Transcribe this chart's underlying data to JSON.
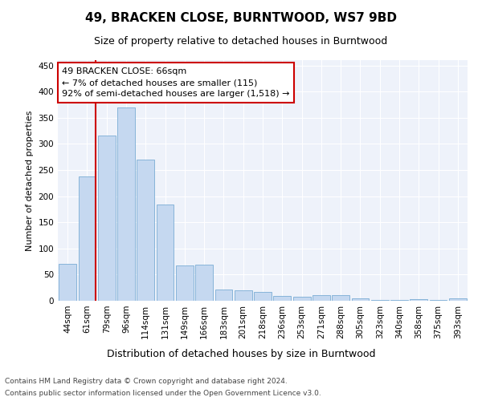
{
  "title": "49, BRACKEN CLOSE, BURNTWOOD, WS7 9BD",
  "subtitle": "Size of property relative to detached houses in Burntwood",
  "xlabel": "Distribution of detached houses by size in Burntwood",
  "ylabel": "Number of detached properties",
  "categories": [
    "44sqm",
    "61sqm",
    "79sqm",
    "96sqm",
    "114sqm",
    "131sqm",
    "149sqm",
    "166sqm",
    "183sqm",
    "201sqm",
    "218sqm",
    "236sqm",
    "253sqm",
    "271sqm",
    "288sqm",
    "305sqm",
    "323sqm",
    "340sqm",
    "358sqm",
    "375sqm",
    "393sqm"
  ],
  "values": [
    70,
    237,
    316,
    369,
    270,
    184,
    67,
    69,
    21,
    20,
    17,
    9,
    7,
    10,
    10,
    4,
    2,
    2,
    3,
    1,
    4
  ],
  "bar_color": "#c5d8f0",
  "bar_edge_color": "#7aadd4",
  "background_color": "#eef2fa",
  "grid_color": "#ffffff",
  "vline_color": "#cc0000",
  "annotation_line1": "49 BRACKEN CLOSE: 66sqm",
  "annotation_line2": "← 7% of detached houses are smaller (115)",
  "annotation_line3": "92% of semi-detached houses are larger (1,518) →",
  "annotation_box_color": "#cc0000",
  "ylim": [
    0,
    460
  ],
  "yticks": [
    0,
    50,
    100,
    150,
    200,
    250,
    300,
    350,
    400,
    450
  ],
  "title_fontsize": 11,
  "subtitle_fontsize": 9,
  "ylabel_fontsize": 8,
  "xlabel_fontsize": 9,
  "tick_fontsize": 7.5,
  "footer_line1": "Contains HM Land Registry data © Crown copyright and database right 2024.",
  "footer_line2": "Contains public sector information licensed under the Open Government Licence v3.0.",
  "footer_fontsize": 6.5
}
